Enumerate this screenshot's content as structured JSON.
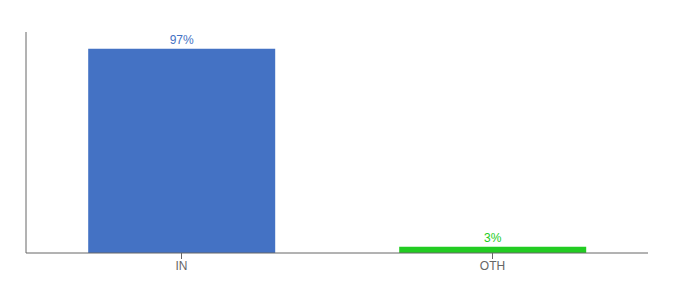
{
  "chart_data": {
    "type": "bar",
    "categories": [
      "IN",
      "OTH"
    ],
    "values": [
      97,
      3
    ],
    "value_labels": [
      "97%",
      "3%"
    ],
    "colors": [
      "#4472c4",
      "#22cc22"
    ],
    "ylim": [
      0,
      105
    ],
    "data_labels": true,
    "tick_labels": "x",
    "grid": false
  }
}
